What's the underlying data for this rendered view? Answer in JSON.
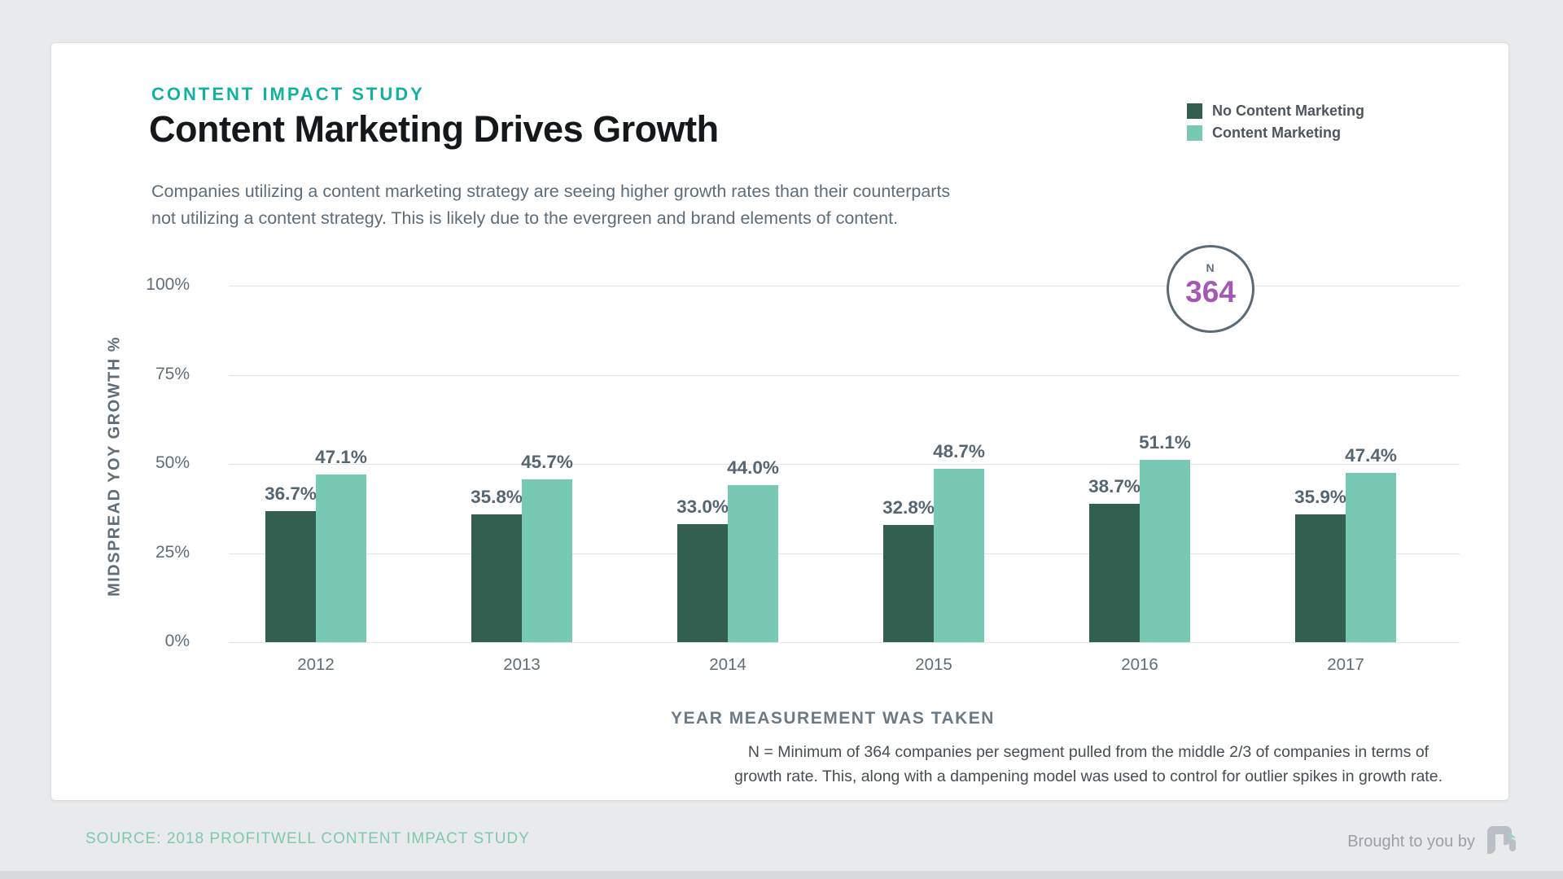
{
  "page": {
    "eyebrow": "CONTENT IMPACT STUDY",
    "title": "Content Marketing Drives Growth",
    "subtitle_lines": [
      "Companies utilizing a content marketing strategy are seeing higher growth rates than their counterparts",
      "not utilizing a content strategy. This is likely due to the evergreen and brand elements of content."
    ],
    "n_badge": {
      "label": "N",
      "value": "364",
      "value_color": "#a458b5"
    },
    "footnote_lines": [
      "N = Minimum of 364 companies per segment pulled from the middle 2/3 of companies in terms of",
      "growth rate. This, along with a dampening model was used to control for outlier spikes in growth rate."
    ],
    "source": "SOURCE: 2018 PROFITWELL CONTENT IMPACT STUDY",
    "brought_by": "Brought to you by",
    "logo_name": "profitwell-logo",
    "colors": {
      "accent_teal": "#12b2a0",
      "source_teal": "#7fc8ae",
      "purple": "#a458b5",
      "dark_bar": "#335f50",
      "light_bar": "#77c9b3"
    }
  },
  "chart_data": {
    "type": "bar",
    "title": "Content Marketing Drives Growth",
    "categories": [
      "2012",
      "2013",
      "2014",
      "2015",
      "2016",
      "2017"
    ],
    "series": [
      {
        "name": "No Content Marketing",
        "color": "#335f50",
        "values": [
          36.7,
          35.8,
          33.0,
          32.8,
          38.7,
          35.9
        ]
      },
      {
        "name": "Content Marketing",
        "color": "#77c9b3",
        "values": [
          47.1,
          45.7,
          44.0,
          48.7,
          51.1,
          47.4
        ]
      }
    ],
    "value_suffix": "%",
    "xlabel": "YEAR MEASUREMENT WAS TAKEN",
    "ylabel": "MIDSPREAD YOY GROWTH %",
    "yticks": [
      100,
      75,
      50,
      25,
      0
    ],
    "ylim": [
      0,
      100
    ],
    "grid": true,
    "legend_position": "top-right"
  }
}
